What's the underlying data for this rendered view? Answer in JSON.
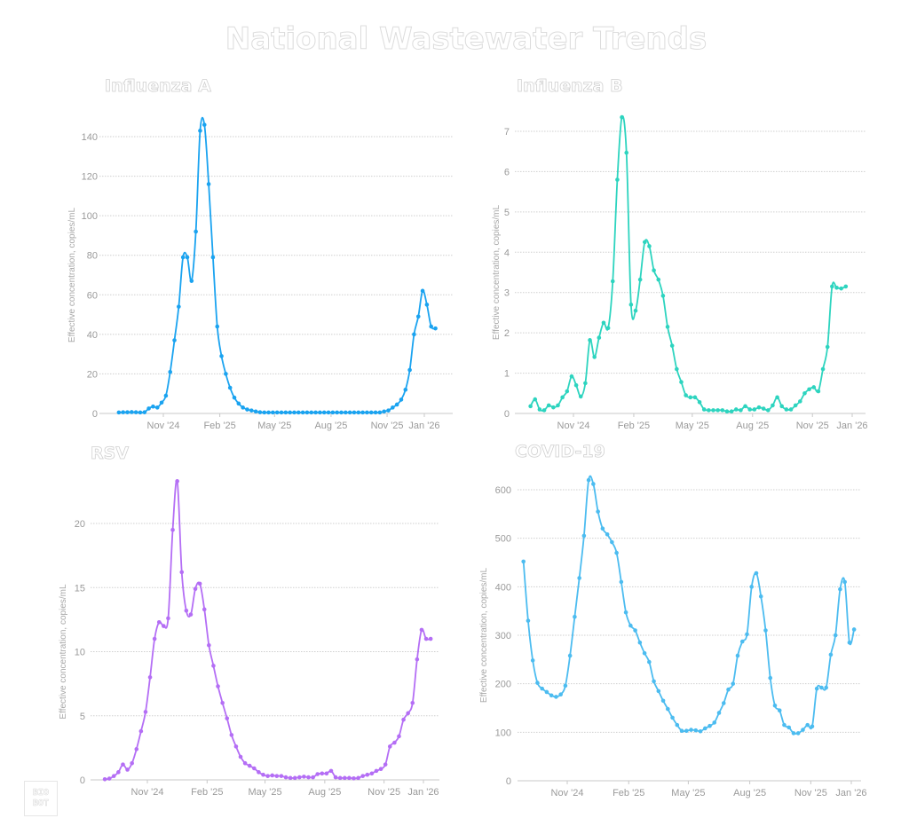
{
  "title": "National Wastewater Trends",
  "logo": {
    "line1": "BIO",
    "line2": "BOT"
  },
  "chart_data": [
    {
      "type": "line",
      "title": "Influenza A",
      "xlabel": "",
      "ylabel": "Effective concentration, copies/mL",
      "color": "#1aa3f0",
      "ylim": [
        0,
        145
      ],
      "yticks": [
        0,
        20,
        40,
        60,
        80,
        100,
        120,
        140
      ],
      "xticks": [
        {
          "label": "Nov '24",
          "week": 11.4
        },
        {
          "label": "Feb '25",
          "week": 24.6
        },
        {
          "label": "May '25",
          "week": 37.4
        },
        {
          "label": "Aug '25",
          "week": 50.6
        },
        {
          "label": "Nov '25",
          "week": 63.7
        },
        {
          "label": "Jan '26",
          "week": 72.4
        }
      ],
      "x_unit": "weeks since 2024-08-12",
      "xlim": [
        0,
        76
      ],
      "start_week": 1,
      "grid": true,
      "values": [
        0.5,
        0.6,
        0.6,
        0.7,
        0.6,
        0.5,
        0.6,
        2.5,
        3.5,
        3.0,
        5.5,
        9,
        21,
        37,
        54,
        79,
        79,
        67,
        92,
        143,
        146,
        116,
        79,
        44,
        29,
        20,
        13,
        8,
        5,
        3,
        2,
        1.5,
        1,
        0.6,
        0.5,
        0.5,
        0.5,
        0.5,
        0.5,
        0.5,
        0.5,
        0.5,
        0.5,
        0.5,
        0.5,
        0.5,
        0.5,
        0.5,
        0.5,
        0.5,
        0.5,
        0.5,
        0.5,
        0.5,
        0.5,
        0.5,
        0.5,
        0.5,
        0.5,
        0.5,
        0.5,
        0.5,
        1,
        1.5,
        3,
        4.5,
        7,
        12,
        22,
        40,
        49,
        62,
        55,
        44,
        43
      ]
    },
    {
      "type": "line",
      "title": "Influenza B",
      "xlabel": "",
      "ylabel": "Effective concentration, copies/mL",
      "color": "#2dd4bf",
      "ylim": [
        0,
        7.3
      ],
      "yticks": [
        0,
        1,
        2,
        3,
        4,
        5,
        6,
        7
      ],
      "xticks": [
        {
          "label": "Nov '24",
          "week": 11.4
        },
        {
          "label": "Feb '25",
          "week": 24.6
        },
        {
          "label": "May '25",
          "week": 37.4
        },
        {
          "label": "Aug '25",
          "week": 50.6
        },
        {
          "label": "Nov '25",
          "week": 63.7
        },
        {
          "label": "Jan '26",
          "week": 72.4
        }
      ],
      "x_unit": "weeks since 2024-08-12",
      "xlim": [
        0,
        75
      ],
      "start_week": 2,
      "grid": true,
      "values": [
        0.18,
        0.35,
        0.1,
        0.08,
        0.2,
        0.15,
        0.2,
        0.4,
        0.55,
        0.92,
        0.7,
        0.42,
        0.75,
        1.82,
        1.4,
        1.88,
        2.25,
        2.12,
        3.28,
        5.8,
        7.35,
        6.47,
        2.7,
        2.55,
        3.32,
        4.25,
        4.15,
        3.55,
        3.32,
        2.92,
        2.15,
        1.68,
        1.1,
        0.78,
        0.45,
        0.4,
        0.4,
        0.28,
        0.1,
        0.08,
        0.08,
        0.08,
        0.08,
        0.05,
        0.05,
        0.1,
        0.08,
        0.18,
        0.1,
        0.1,
        0.15,
        0.12,
        0.08,
        0.2,
        0.4,
        0.18,
        0.1,
        0.1,
        0.2,
        0.3,
        0.5,
        0.6,
        0.65,
        0.55,
        1.1,
        1.65,
        3.15,
        3.12,
        3.1,
        3.15
      ]
    },
    {
      "type": "line",
      "title": "RSV",
      "xlabel": "",
      "ylabel": "Effective concentration, copies/mL",
      "color": "#b46ef5",
      "ylim": [
        0,
        24
      ],
      "yticks": [
        0,
        5,
        10,
        15,
        20
      ],
      "xticks": [
        {
          "label": "Nov '24",
          "week": 11.4
        },
        {
          "label": "Feb '25",
          "week": 24.6
        },
        {
          "label": "May '25",
          "week": 37.4
        },
        {
          "label": "Aug '25",
          "week": 50.6
        },
        {
          "label": "Nov '25",
          "week": 63.7
        },
        {
          "label": "Jan '26",
          "week": 72.4
        }
      ],
      "x_unit": "weeks since 2024-08-12",
      "xlim": [
        0,
        76
      ],
      "start_week": 2,
      "grid": true,
      "values": [
        0.05,
        0.1,
        0.3,
        0.6,
        1.2,
        0.8,
        1.3,
        2.4,
        3.8,
        5.3,
        8.0,
        11.0,
        12.3,
        12.0,
        12.6,
        19.5,
        23.3,
        16.2,
        13.2,
        12.9,
        14.9,
        15.3,
        13.3,
        10.5,
        8.9,
        7.3,
        6.0,
        4.8,
        3.5,
        2.6,
        1.8,
        1.3,
        1.1,
        0.9,
        0.6,
        0.4,
        0.3,
        0.35,
        0.3,
        0.3,
        0.2,
        0.15,
        0.15,
        0.2,
        0.25,
        0.2,
        0.2,
        0.45,
        0.5,
        0.5,
        0.7,
        0.2,
        0.15,
        0.15,
        0.15,
        0.12,
        0.15,
        0.3,
        0.4,
        0.5,
        0.7,
        0.85,
        1.2,
        2.6,
        2.9,
        3.4,
        4.7,
        5.2,
        6.0,
        9.4,
        11.7,
        11.0,
        11.0
      ]
    },
    {
      "type": "line",
      "title": "COVID-19",
      "xlabel": "",
      "ylabel": "Effective concentration, copies/mL",
      "color": "#4cbcf0",
      "ylim": [
        0,
        640
      ],
      "yticks": [
        0,
        100,
        200,
        300,
        400,
        500,
        600
      ],
      "xticks": [
        {
          "label": "Nov '24",
          "week": 11.4
        },
        {
          "label": "Feb '25",
          "week": 24.6
        },
        {
          "label": "May '25",
          "week": 37.4
        },
        {
          "label": "Aug '25",
          "week": 50.6
        },
        {
          "label": "Nov '25",
          "week": 63.7
        },
        {
          "label": "Jan '26",
          "week": 72.4
        }
      ],
      "x_unit": "weeks since 2024-08-12",
      "xlim": [
        0,
        75
      ],
      "start_week": 2,
      "grid": true,
      "values": [
        452,
        330,
        248,
        202,
        190,
        183,
        176,
        173,
        178,
        196,
        258,
        338,
        418,
        505,
        620,
        612,
        555,
        520,
        508,
        492,
        470,
        410,
        347,
        320,
        310,
        285,
        263,
        245,
        205,
        185,
        165,
        148,
        130,
        115,
        103,
        103,
        105,
        104,
        102,
        108,
        113,
        120,
        140,
        160,
        188,
        200,
        258,
        287,
        302,
        400,
        428,
        380,
        310,
        212,
        155,
        145,
        115,
        110,
        98,
        98,
        105,
        115,
        112,
        190,
        192,
        192,
        260,
        300,
        395,
        410,
        285,
        312
      ]
    }
  ]
}
